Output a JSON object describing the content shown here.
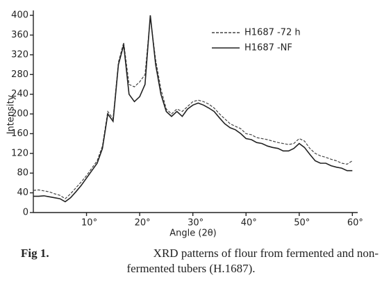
{
  "chart_data": {
    "type": "line",
    "y_label": "Intensity",
    "x_label": "Angle (2θ)",
    "x": [
      0,
      1,
      2,
      3,
      4,
      5,
      6,
      7,
      8,
      9,
      10,
      11,
      12,
      13,
      14,
      15,
      16,
      17,
      18,
      19,
      20,
      21,
      22,
      23,
      24,
      25,
      26,
      27,
      28,
      29,
      30,
      31,
      32,
      33,
      34,
      35,
      36,
      37,
      38,
      39,
      40,
      41,
      42,
      43,
      44,
      45,
      46,
      47,
      48,
      49,
      50,
      51,
      52,
      53,
      54,
      55,
      56,
      57,
      58,
      59,
      60
    ],
    "series": [
      {
        "name": "H1687 -72 h",
        "color": "#444444",
        "line_style": "dashed",
        "values": [
          45,
          46,
          44,
          42,
          38,
          35,
          28,
          38,
          50,
          62,
          75,
          90,
          105,
          135,
          205,
          190,
          305,
          345,
          260,
          255,
          265,
          280,
          395,
          310,
          250,
          210,
          200,
          210,
          205,
          215,
          225,
          228,
          225,
          220,
          212,
          200,
          190,
          180,
          175,
          170,
          160,
          158,
          152,
          150,
          148,
          145,
          142,
          140,
          138,
          140,
          150,
          145,
          130,
          120,
          115,
          112,
          108,
          105,
          100,
          98,
          105
        ]
      },
      {
        "name": "H1687 -NF",
        "color": "#222222",
        "line_style": "solid",
        "values": [
          33,
          33,
          34,
          32,
          30,
          28,
          22,
          30,
          42,
          55,
          70,
          85,
          100,
          130,
          200,
          185,
          300,
          340,
          240,
          225,
          235,
          260,
          400,
          300,
          240,
          205,
          195,
          205,
          195,
          210,
          218,
          222,
          218,
          212,
          205,
          192,
          180,
          172,
          168,
          160,
          150,
          148,
          142,
          140,
          135,
          132,
          130,
          125,
          125,
          130,
          140,
          132,
          118,
          105,
          100,
          100,
          95,
          92,
          90,
          85,
          85
        ]
      }
    ],
    "xlim": [
      0,
      61
    ],
    "ylim": [
      0,
      410
    ],
    "xticks": [
      {
        "value": 10,
        "label": "10°"
      },
      {
        "value": 20,
        "label": "20°"
      },
      {
        "value": 30,
        "label": "30°"
      },
      {
        "value": 40,
        "label": "40°"
      },
      {
        "value": 50,
        "label": "50°"
      },
      {
        "value": 60,
        "label": "60°"
      }
    ],
    "yticks": [
      0,
      40,
      80,
      120,
      160,
      200,
      240,
      280,
      320,
      360,
      400
    ],
    "legend": "top-right",
    "caption": {
      "label": "Fig 1.",
      "lines": [
        "XRD patterns of flour from fermented and non-",
        "fermented tubers (H.1687)."
      ]
    }
  }
}
